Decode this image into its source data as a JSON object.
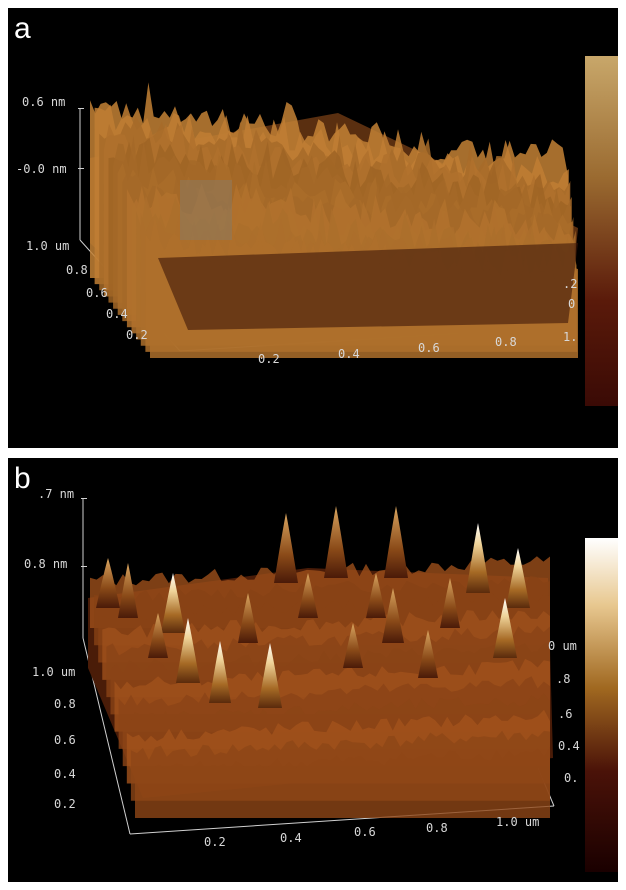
{
  "panels": [
    {
      "label": "a",
      "z_top": "0.6 nm",
      "z_mid": "-0.0 nm",
      "y_ticks": [
        "1.0 um",
        "0.8",
        "0.6",
        "0.4",
        "0.2"
      ],
      "x_ticks": [
        "0.2",
        "0.4",
        "0.6",
        "0.8",
        "1."
      ],
      "right_ticks": [
        ".2",
        "0"
      ]
    },
    {
      "label": "b",
      "z_top": ".7 nm",
      "z_mid": "0.8 nm",
      "y_ticks": [
        "1.0 um",
        "0.8",
        "0.6",
        "0.4",
        "0.2"
      ],
      "x_ticks": [
        "0.2",
        "0.4",
        "0.6",
        "0.8",
        "1.0 um"
      ],
      "right_ticks": [
        "0 um",
        ".8",
        ".6",
        "0.4",
        "0."
      ]
    }
  ],
  "colors": {
    "background": "#000000",
    "colorbar_a_top": "#c8a76a",
    "colorbar_a_bottom": "#3a0a05",
    "colorbar_b_top": "#ffffff",
    "colorbar_b_bottom": "#1a0000"
  }
}
